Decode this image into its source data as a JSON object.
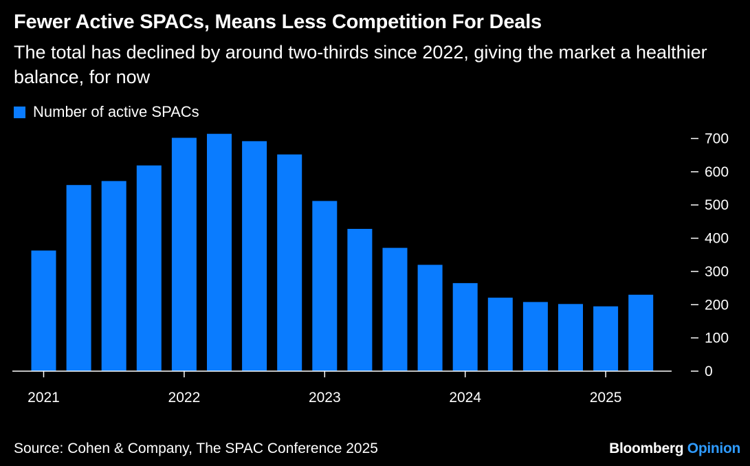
{
  "title": "Fewer Active SPACs, Means Less Competition For Deals",
  "subtitle": "The total has declined by around two-thirds since 2022, giving the market a healthier balance, for now",
  "source": "Source: Cohen & Company, The SPAC Conference 2025",
  "brand": {
    "name": "Bloomberg",
    "suffix": "Opinion"
  },
  "colors": {
    "background": "#000000",
    "bar": "#0a7cff",
    "axis": "#ffffff",
    "brand_accent": "#2f9bff"
  },
  "chart_data": {
    "type": "bar",
    "series": [
      {
        "name": "Number of active SPACs",
        "values": [
          363,
          560,
          572,
          619,
          702,
          714,
          692,
          652,
          512,
          428,
          371,
          320,
          265,
          221,
          208,
          202,
          195,
          230
        ]
      }
    ],
    "x_ticks": [
      "2021",
      "2022",
      "2023",
      "2024",
      "2025"
    ],
    "y_ticks": [
      0,
      100,
      200,
      300,
      400,
      500,
      600,
      700
    ],
    "ylim": [
      0,
      715
    ],
    "y_axis_side": "right",
    "grid": false,
    "legend_position": "top-left"
  }
}
